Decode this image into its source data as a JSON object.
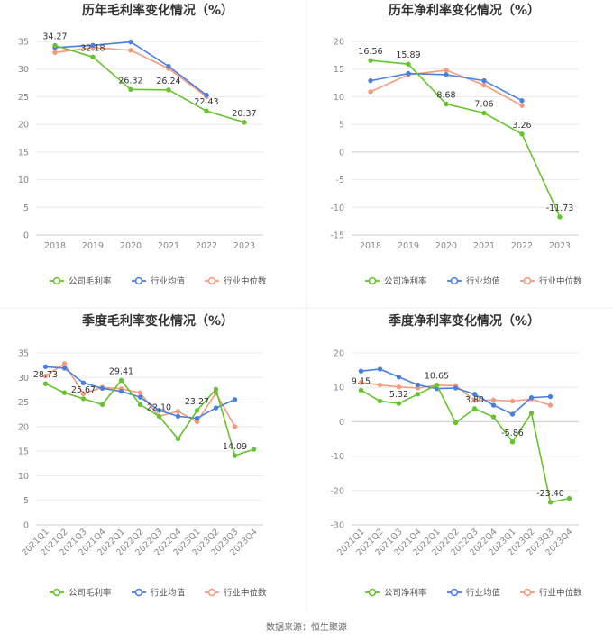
{
  "source_text": "数据来源：恒生聚源",
  "legend_labels": {
    "gross": [
      "公司毛利率",
      "行业均值",
      "行业中位数"
    ],
    "net": [
      "公司净利率",
      "行业均值",
      "行业中位数"
    ]
  },
  "colors": {
    "company": "#66c32d",
    "avg": "#4a7fe0",
    "median": "#f59a7c",
    "grid": "#eaeaea"
  },
  "chart_data": [
    {
      "type": "line",
      "title": "历年毛利率变化情况（%）",
      "categories": [
        "2018",
        "2019",
        "2020",
        "2021",
        "2022",
        "2023"
      ],
      "ylim": [
        0,
        35
      ],
      "yticks": [
        0,
        5,
        10,
        15,
        20,
        25,
        30,
        35
      ],
      "series": [
        {
          "name": "公司毛利率",
          "values": [
            34.27,
            32.18,
            26.32,
            26.24,
            22.43,
            20.37
          ],
          "labels": [
            "34.27",
            "32.18",
            "26.32",
            "26.24",
            "22.43",
            "20.37"
          ]
        },
        {
          "name": "行业均值",
          "values": [
            33.9,
            34.3,
            34.9,
            30.5,
            25.3,
            null
          ]
        },
        {
          "name": "行业中位数",
          "values": [
            33.0,
            33.9,
            33.4,
            30.1,
            25.0,
            null
          ]
        }
      ],
      "grid": true,
      "legend": "bottom"
    },
    {
      "type": "line",
      "title": "历年净利率变化情况（%）",
      "categories": [
        "2018",
        "2019",
        "2020",
        "2021",
        "2022",
        "2023"
      ],
      "ylim": [
        -15,
        20
      ],
      "yticks": [
        -15,
        -10,
        -5,
        0,
        5,
        10,
        15,
        20
      ],
      "series": [
        {
          "name": "公司净利率",
          "values": [
            16.56,
            15.89,
            8.68,
            7.06,
            3.26,
            -11.73
          ],
          "labels": [
            "16.56",
            "15.89",
            "8.68",
            "7.06",
            "3.26",
            "-11.73"
          ]
        },
        {
          "name": "行业均值",
          "values": [
            12.9,
            14.2,
            14.0,
            12.9,
            9.3,
            null
          ]
        },
        {
          "name": "行业中位数",
          "values": [
            10.9,
            14.0,
            14.8,
            12.1,
            8.4,
            null
          ]
        }
      ],
      "grid": true,
      "legend": "bottom"
    },
    {
      "type": "line",
      "title": "季度毛利率变化情况（%）",
      "categories": [
        "2021Q1",
        "2021Q2",
        "2021Q3",
        "2021Q4",
        "2022Q1",
        "2022Q2",
        "2022Q3",
        "2022Q4",
        "2023Q1",
        "2023Q2",
        "2023Q3",
        "2023Q4"
      ],
      "ylim": [
        0,
        35
      ],
      "yticks": [
        0,
        5,
        10,
        15,
        20,
        25,
        30,
        35
      ],
      "series": [
        {
          "name": "公司毛利率",
          "values": [
            28.73,
            26.9,
            25.67,
            24.5,
            29.41,
            24.5,
            22.1,
            17.5,
            23.27,
            27.6,
            14.09,
            15.4
          ],
          "labels": [
            "28.73",
            null,
            "25.67",
            null,
            "29.41",
            null,
            "22.10",
            null,
            "23.27",
            null,
            "14.09",
            null
          ]
        },
        {
          "name": "行业均值",
          "values": [
            32.2,
            31.9,
            28.9,
            27.8,
            27.2,
            26.0,
            23.3,
            22.1,
            21.7,
            23.8,
            25.5,
            null
          ]
        },
        {
          "name": "行业中位数",
          "values": [
            30.3,
            32.8,
            26.7,
            28.0,
            27.7,
            26.9,
            22.1,
            23.1,
            21.0,
            26.8,
            20.0,
            null
          ]
        }
      ],
      "grid": true,
      "legend": "bottom"
    },
    {
      "type": "line",
      "title": "季度净利率变化情况（%）",
      "categories": [
        "2021Q1",
        "2021Q2",
        "2021Q3",
        "2021Q4",
        "2022Q1",
        "2022Q2",
        "2022Q3",
        "2022Q4",
        "2023Q1",
        "2023Q2",
        "2023Q3",
        "2023Q4"
      ],
      "ylim": [
        -30,
        20
      ],
      "yticks": [
        -30,
        -20,
        -10,
        0,
        10,
        20
      ],
      "series": [
        {
          "name": "公司净利率",
          "values": [
            9.15,
            6.0,
            5.32,
            8.0,
            10.65,
            -0.3,
            3.8,
            1.4,
            -5.86,
            2.5,
            -23.4,
            -22.3
          ],
          "labels": [
            "9.15",
            null,
            "5.32",
            null,
            "10.65",
            null,
            "3.80",
            null,
            "-5.86",
            null,
            "-23.40",
            null
          ]
        },
        {
          "name": "行业均值",
          "values": [
            14.7,
            15.3,
            13.0,
            10.7,
            9.6,
            9.8,
            8.0,
            4.8,
            2.2,
            7.0,
            7.3,
            null
          ]
        },
        {
          "name": "行业中位数",
          "values": [
            11.4,
            10.7,
            10.1,
            9.8,
            10.6,
            10.5,
            6.2,
            6.3,
            6.0,
            6.6,
            4.8,
            null
          ]
        }
      ],
      "grid": true,
      "legend": "bottom"
    }
  ]
}
